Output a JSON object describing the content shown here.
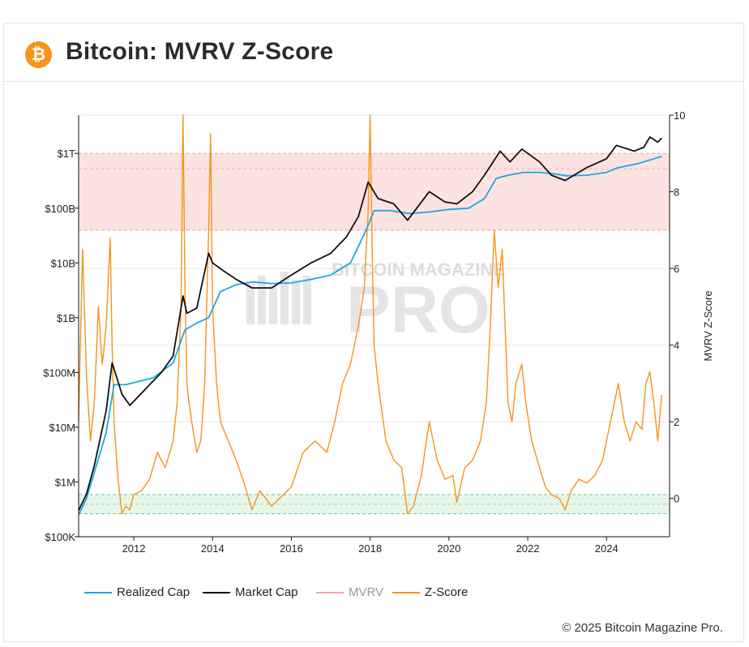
{
  "header": {
    "title": "Bitcoin: MVRV Z-Score",
    "logo_glyph": "₿"
  },
  "footer": {
    "copyright": "© 2025 Bitcoin Magazine Pro."
  },
  "watermark": {
    "line1": "BITCOIN MAGAZINE",
    "line2": "PRO"
  },
  "colors": {
    "realized": "#1ea7e1",
    "market": "#111111",
    "mvrv": "#f4a7a7",
    "zscore": "#f7931a",
    "red_band": "#fde2e2",
    "green_band": "#e6f7ea",
    "accent": "#f7931a"
  },
  "chart_data": {
    "type": "line",
    "x_range": [
      2010.6,
      2025.6
    ],
    "x_ticks": [
      "2012",
      "2014",
      "2016",
      "2018",
      "2020",
      "2022",
      "2024"
    ],
    "y_left": {
      "scale": "log",
      "range": [
        100000,
        5000000000000
      ],
      "ticks": [
        "$100K",
        "$1M",
        "$10M",
        "$100M",
        "$1B",
        "$10B",
        "$100B",
        "$1T"
      ]
    },
    "y_right": {
      "label": "MVRV Z-Score",
      "range": [
        -1,
        10
      ],
      "ticks": [
        "0",
        "2",
        "4",
        "6",
        "8",
        "10"
      ]
    },
    "bands": {
      "red": [
        7,
        9
      ],
      "green": [
        -0.4,
        0.1
      ]
    },
    "series": [
      {
        "name": "Realized Cap",
        "axis": "left",
        "x": [
          2010.6,
          2010.8,
          2011.0,
          2011.3,
          2011.5,
          2011.8,
          2012.0,
          2012.5,
          2013.0,
          2013.3,
          2013.6,
          2013.9,
          2014.2,
          2014.6,
          2015.0,
          2015.5,
          2016.0,
          2016.5,
          2017.0,
          2017.5,
          2017.9,
          2018.1,
          2018.5,
          2019.0,
          2019.5,
          2020.0,
          2020.5,
          2020.9,
          2021.2,
          2021.5,
          2021.9,
          2022.3,
          2022.7,
          2023.0,
          2023.5,
          2024.0,
          2024.3,
          2024.8,
          2025.2,
          2025.4
        ],
        "y": [
          250000,
          500000,
          1500000,
          8000000,
          60000000,
          60000000,
          65000000,
          80000000,
          150000000,
          600000000,
          800000000,
          1000000000,
          3000000000,
          4000000000,
          4500000000,
          4200000000,
          4300000000,
          5000000000,
          6000000000,
          10000000000,
          40000000000,
          90000000000,
          90000000000,
          80000000000,
          85000000000,
          95000000000,
          100000000000,
          150000000000,
          350000000000,
          400000000000,
          450000000000,
          450000000000,
          420000000000,
          390000000000,
          400000000000,
          450000000000,
          550000000000,
          650000000000,
          800000000000,
          880000000000
        ]
      },
      {
        "name": "Market Cap",
        "axis": "left",
        "x": [
          2010.6,
          2010.8,
          2011.0,
          2011.3,
          2011.45,
          2011.7,
          2011.9,
          2012.3,
          2012.7,
          2013.0,
          2013.25,
          2013.35,
          2013.6,
          2013.9,
          2014.0,
          2014.3,
          2014.6,
          2015.0,
          2015.5,
          2016.0,
          2016.5,
          2017.0,
          2017.4,
          2017.7,
          2017.95,
          2018.2,
          2018.6,
          2018.95,
          2019.5,
          2019.9,
          2020.2,
          2020.6,
          2020.9,
          2021.3,
          2021.55,
          2021.85,
          2022.3,
          2022.6,
          2022.95,
          2023.5,
          2024.0,
          2024.25,
          2024.7,
          2024.95,
          2025.1,
          2025.3,
          2025.4
        ],
        "y": [
          300000,
          600000,
          2000000,
          20000000,
          150000000,
          40000000,
          25000000,
          50000000,
          100000000,
          200000000,
          2500000000,
          1200000000,
          1500000000,
          15000000000,
          10000000000,
          7000000000,
          5000000000,
          3500000000,
          3500000000,
          6000000000,
          10000000000,
          15000000000,
          30000000000,
          70000000000,
          300000000000,
          150000000000,
          120000000000,
          60000000000,
          200000000000,
          130000000000,
          120000000000,
          200000000000,
          400000000000,
          1100000000000,
          700000000000,
          1200000000000,
          700000000000,
          400000000000,
          320000000000,
          550000000000,
          800000000000,
          1400000000000,
          1100000000000,
          1300000000000,
          2000000000000,
          1600000000000,
          1900000000000
        ]
      },
      {
        "name": "MVRV",
        "axis": "left",
        "x": [],
        "y": []
      },
      {
        "name": "Z-Score",
        "axis": "right",
        "x": [
          2010.6,
          2010.7,
          2010.8,
          2010.9,
          2011.0,
          2011.1,
          2011.2,
          2011.3,
          2011.4,
          2011.45,
          2011.5,
          2011.6,
          2011.7,
          2011.8,
          2011.9,
          2012.0,
          2012.2,
          2012.4,
          2012.6,
          2012.8,
          2013.0,
          2013.1,
          2013.2,
          2013.25,
          2013.3,
          2013.35,
          2013.4,
          2013.5,
          2013.6,
          2013.7,
          2013.8,
          2013.9,
          2013.95,
          2014.0,
          2014.1,
          2014.2,
          2014.4,
          2014.6,
          2014.8,
          2015.0,
          2015.2,
          2015.5,
          2015.8,
          2016.0,
          2016.3,
          2016.6,
          2016.9,
          2017.1,
          2017.3,
          2017.5,
          2017.7,
          2017.85,
          2017.95,
          2018.0,
          2018.05,
          2018.1,
          2018.2,
          2018.4,
          2018.6,
          2018.8,
          2018.95,
          2019.1,
          2019.3,
          2019.5,
          2019.7,
          2019.9,
          2020.1,
          2020.2,
          2020.4,
          2020.6,
          2020.8,
          2020.95,
          2021.05,
          2021.15,
          2021.25,
          2021.35,
          2021.5,
          2021.6,
          2021.7,
          2021.85,
          2021.95,
          2022.1,
          2022.3,
          2022.45,
          2022.6,
          2022.8,
          2022.95,
          2023.1,
          2023.3,
          2023.5,
          2023.7,
          2023.9,
          2024.0,
          2024.1,
          2024.2,
          2024.3,
          2024.45,
          2024.6,
          2024.75,
          2024.9,
          2025.0,
          2025.1,
          2025.2,
          2025.3,
          2025.4
        ],
        "y": [
          2.0,
          6.5,
          3.2,
          1.5,
          2.5,
          5.0,
          3.5,
          4.5,
          6.8,
          4.0,
          2.0,
          0.5,
          -0.4,
          -0.2,
          -0.3,
          0.1,
          0.2,
          0.5,
          1.2,
          0.8,
          1.5,
          2.5,
          5.0,
          10.0,
          5.5,
          3.0,
          2.5,
          1.8,
          1.2,
          1.5,
          3.0,
          7.0,
          9.5,
          5.0,
          3.0,
          2.0,
          1.5,
          1.0,
          0.4,
          -0.3,
          0.2,
          -0.2,
          0.1,
          0.3,
          1.2,
          1.5,
          1.2,
          2.0,
          3.0,
          3.5,
          4.5,
          5.5,
          7.5,
          10.0,
          6.5,
          4.0,
          3.0,
          1.5,
          1.0,
          0.8,
          -0.4,
          -0.2,
          0.6,
          2.0,
          1.0,
          0.5,
          0.6,
          -0.1,
          0.8,
          1.0,
          1.5,
          2.5,
          4.5,
          7.0,
          5.5,
          6.5,
          2.5,
          2.0,
          3.0,
          3.5,
          2.5,
          1.5,
          0.8,
          0.3,
          0.1,
          0.0,
          -0.3,
          0.2,
          0.5,
          0.4,
          0.6,
          1.0,
          1.5,
          2.0,
          2.5,
          3.0,
          2.0,
          1.5,
          2.0,
          1.8,
          3.0,
          3.3,
          2.5,
          1.5,
          2.7
        ]
      }
    ]
  }
}
